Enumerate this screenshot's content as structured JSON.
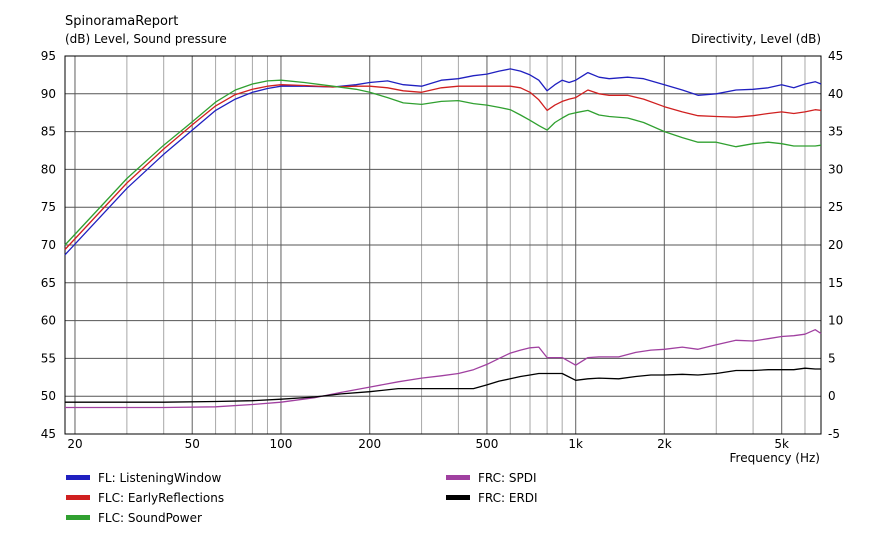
{
  "chart_data": {
    "type": "line",
    "title": "SpinoramaReport",
    "ylabel": "(dB)  Level, Sound pressure",
    "y2label": "Directivity, Level  (dB)",
    "xlabel": "Frequency  (Hz)",
    "xscale": "log",
    "xlim": [
      18.5,
      6800
    ],
    "ylim": [
      45,
      95
    ],
    "y2lim": [
      -5,
      45
    ],
    "grid": true,
    "legend_position": "bottom",
    "x_ticks": [
      20,
      50,
      100,
      200,
      500,
      1000,
      2000,
      5000
    ],
    "x_tick_labels": [
      "20",
      "50",
      "100",
      "200",
      "500",
      "1k",
      "2k",
      "5k"
    ],
    "y_ticks": [
      45,
      50,
      55,
      60,
      65,
      70,
      75,
      80,
      85,
      90,
      95
    ],
    "y2_ticks": [
      -5,
      0,
      5,
      10,
      15,
      20,
      25,
      30,
      35,
      40,
      45
    ],
    "series": [
      {
        "name": "FL: ListeningWindow",
        "color": "#2020c0",
        "axis": "left",
        "x": [
          18.5,
          30,
          40,
          50,
          60,
          70,
          80,
          90,
          100,
          120,
          150,
          180,
          200,
          230,
          260,
          300,
          350,
          400,
          450,
          500,
          550,
          600,
          650,
          700,
          750,
          800,
          850,
          900,
          950,
          1000,
          1100,
          1200,
          1300,
          1500,
          1700,
          2000,
          2300,
          2600,
          3000,
          3500,
          4000,
          4500,
          5000,
          5500,
          6000,
          6500,
          6800
        ],
        "y": [
          68.7,
          77.5,
          82.0,
          85.2,
          87.8,
          89.3,
          90.2,
          90.7,
          91.0,
          91.0,
          90.9,
          91.2,
          91.5,
          91.7,
          91.2,
          91.0,
          91.8,
          92.0,
          92.4,
          92.6,
          93.0,
          93.3,
          93.0,
          92.5,
          91.8,
          90.4,
          91.2,
          91.8,
          91.5,
          91.8,
          92.8,
          92.2,
          92.0,
          92.2,
          92.0,
          91.2,
          90.5,
          89.8,
          90.0,
          90.5,
          90.6,
          90.8,
          91.2,
          90.8,
          91.3,
          91.6,
          91.3
        ]
      },
      {
        "name": "FLC: EarlyReflections",
        "color": "#d02020",
        "axis": "left",
        "x": [
          18.5,
          30,
          40,
          50,
          60,
          70,
          80,
          90,
          100,
          120,
          150,
          180,
          200,
          230,
          260,
          300,
          350,
          400,
          450,
          500,
          550,
          600,
          650,
          700,
          750,
          800,
          850,
          900,
          950,
          1000,
          1100,
          1200,
          1300,
          1500,
          1700,
          2000,
          2300,
          2600,
          3000,
          3500,
          4000,
          4500,
          5000,
          5500,
          6000,
          6500,
          6800
        ],
        "y": [
          69.4,
          78.2,
          82.7,
          85.9,
          88.4,
          89.9,
          90.6,
          91.0,
          91.2,
          91.1,
          90.9,
          91.0,
          91.0,
          90.8,
          90.4,
          90.2,
          90.8,
          91.0,
          91.0,
          91.0,
          91.0,
          91.0,
          90.8,
          90.2,
          89.2,
          87.8,
          88.5,
          89.0,
          89.3,
          89.5,
          90.5,
          90.0,
          89.8,
          89.8,
          89.3,
          88.3,
          87.6,
          87.1,
          87.0,
          86.9,
          87.1,
          87.4,
          87.6,
          87.4,
          87.6,
          87.9,
          87.8
        ]
      },
      {
        "name": "FLC: SoundPower",
        "color": "#30a030",
        "axis": "left",
        "x": [
          18.5,
          30,
          40,
          50,
          60,
          70,
          80,
          90,
          100,
          120,
          150,
          180,
          200,
          230,
          260,
          300,
          350,
          400,
          450,
          500,
          550,
          600,
          650,
          700,
          750,
          800,
          850,
          900,
          950,
          1000,
          1100,
          1200,
          1300,
          1500,
          1700,
          2000,
          2300,
          2600,
          3000,
          3500,
          4000,
          4500,
          5000,
          5500,
          6000,
          6500,
          6800
        ],
        "y": [
          70.0,
          78.8,
          83.2,
          86.3,
          88.9,
          90.5,
          91.3,
          91.7,
          91.8,
          91.5,
          91.0,
          90.6,
          90.2,
          89.5,
          88.8,
          88.6,
          89.0,
          89.1,
          88.7,
          88.5,
          88.2,
          87.9,
          87.2,
          86.5,
          85.8,
          85.2,
          86.2,
          86.8,
          87.3,
          87.5,
          87.8,
          87.2,
          87.0,
          86.8,
          86.2,
          85.0,
          84.2,
          83.6,
          83.6,
          83.0,
          83.4,
          83.6,
          83.4,
          83.1,
          83.1,
          83.1,
          83.2
        ]
      },
      {
        "name": "FRC: SPDI",
        "color": "#a040a0",
        "axis": "right",
        "x": [
          18.5,
          25,
          40,
          60,
          80,
          100,
          130,
          160,
          200,
          250,
          300,
          350,
          400,
          450,
          500,
          550,
          600,
          650,
          700,
          750,
          800,
          900,
          1000,
          1100,
          1200,
          1400,
          1600,
          1800,
          2000,
          2300,
          2600,
          3000,
          3500,
          4000,
          4500,
          5000,
          5500,
          6000,
          6500,
          6800
        ],
        "y": [
          -1.5,
          -1.5,
          -1.5,
          -1.4,
          -1.1,
          -0.8,
          -0.2,
          0.5,
          1.2,
          1.9,
          2.4,
          2.7,
          3.0,
          3.5,
          4.2,
          5.0,
          5.7,
          6.1,
          6.4,
          6.5,
          5.1,
          5.1,
          4.1,
          5.1,
          5.2,
          5.2,
          5.8,
          6.1,
          6.2,
          6.5,
          6.2,
          6.8,
          7.4,
          7.3,
          7.6,
          7.9,
          8.0,
          8.2,
          8.8,
          8.3
        ]
      },
      {
        "name": "FRC: ERDI",
        "color": "#000000",
        "axis": "right",
        "x": [
          18.5,
          25,
          40,
          60,
          80,
          100,
          130,
          160,
          200,
          250,
          300,
          350,
          400,
          450,
          500,
          550,
          600,
          650,
          700,
          750,
          800,
          900,
          1000,
          1100,
          1200,
          1400,
          1600,
          1800,
          2000,
          2300,
          2600,
          3000,
          3500,
          4000,
          4500,
          5000,
          5500,
          6000,
          6500,
          6800
        ],
        "y": [
          -0.8,
          -0.8,
          -0.8,
          -0.7,
          -0.6,
          -0.4,
          -0.1,
          0.3,
          0.6,
          1.0,
          1.0,
          1.0,
          1.0,
          1.0,
          1.5,
          2.0,
          2.3,
          2.6,
          2.8,
          3.0,
          3.0,
          3.0,
          2.1,
          2.3,
          2.4,
          2.3,
          2.6,
          2.8,
          2.8,
          2.9,
          2.8,
          3.0,
          3.4,
          3.4,
          3.5,
          3.5,
          3.5,
          3.7,
          3.6,
          3.6
        ]
      }
    ]
  }
}
